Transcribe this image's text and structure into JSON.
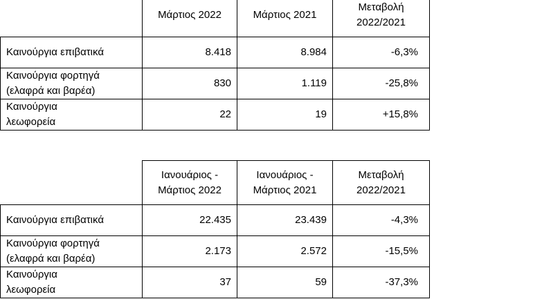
{
  "table1": {
    "headers": [
      "Μάρτιος 2022",
      "Μάρτιος 2021",
      [
        "Μεταβολή",
        "2022/2021"
      ]
    ],
    "rows": [
      {
        "label": [
          "Καινούργια επιβατικά"
        ],
        "v1": "8.418",
        "v2": "8.984",
        "change": "-6,3%"
      },
      {
        "label": [
          "Καινούργια φορτηγά",
          "(ελαφρά και βαρέα)"
        ],
        "v1": "830",
        "v2": "1.119",
        "change": "-25,8%"
      },
      {
        "label": [
          "Καινούργια",
          "λεωφορεία"
        ],
        "v1": "22",
        "v2": "19",
        "change": "+15,8%"
      }
    ]
  },
  "table2": {
    "headers": [
      [
        "Ιανουάριος -",
        "Μάρτιος 2022"
      ],
      [
        "Ιανουάριος -",
        "Μάρτιος 2021"
      ],
      [
        "Μεταβολή",
        "2022/2021"
      ]
    ],
    "rows": [
      {
        "label": [
          "Καινούργια επιβατικά"
        ],
        "v1": "22.435",
        "v2": "23.439",
        "change": "-4,3%"
      },
      {
        "label": [
          "Καινούργια φορτηγά",
          "(ελαφρά και βαρέα)"
        ],
        "v1": "2.173",
        "v2": "2.572",
        "change": "-15,5%"
      },
      {
        "label": [
          "Καινούργια",
          "λεωφορεία"
        ],
        "v1": "37",
        "v2": "59",
        "change": "-37,3%"
      }
    ]
  }
}
